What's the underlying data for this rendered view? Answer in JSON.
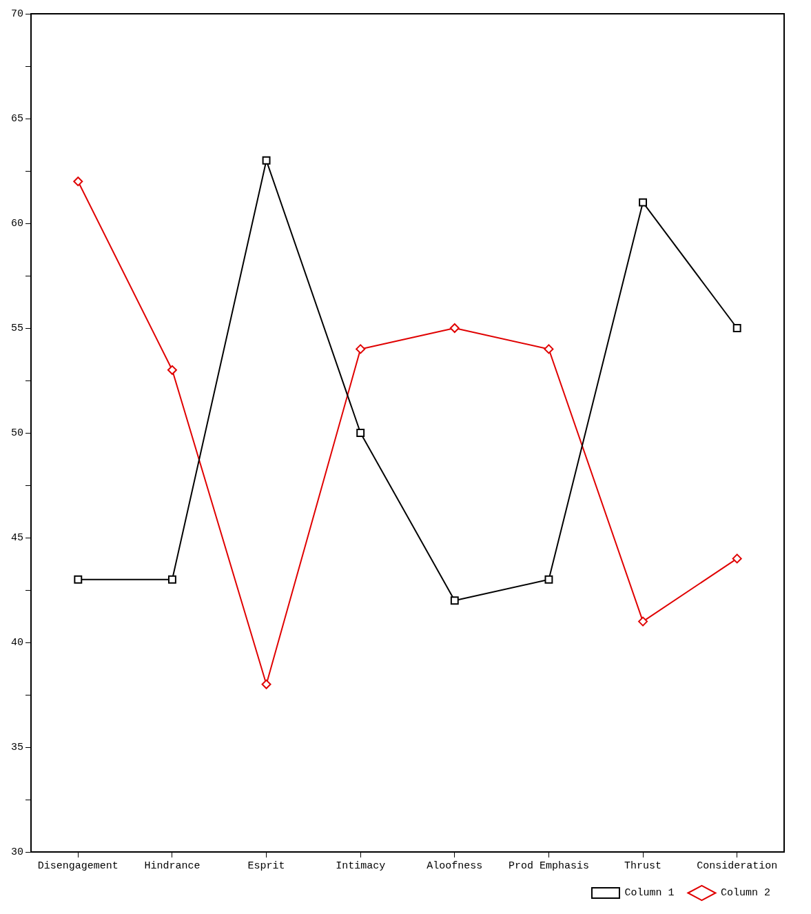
{
  "chart_data": {
    "type": "line",
    "categories": [
      "Disengagement",
      "Hindrance",
      "Esprit",
      "Intimacy",
      "Aloofness",
      "Prod Emphasis",
      "Thrust",
      "Consideration"
    ],
    "series": [
      {
        "name": "Column 1",
        "color": "#000000",
        "marker": "square",
        "values": [
          43,
          43,
          63,
          50,
          42,
          43,
          61,
          55
        ]
      },
      {
        "name": "Column 2",
        "color": "#e00000",
        "marker": "diamond",
        "values": [
          62,
          53,
          38,
          54,
          55,
          54,
          41,
          44
        ]
      }
    ],
    "ylim": [
      30,
      70
    ],
    "yticks": [
      30,
      {
        "value": 32.5,
        "label": null
      },
      35,
      {
        "value": 37.5,
        "label": null
      },
      40,
      {
        "value": 42.5,
        "label": null
      },
      45,
      {
        "value": 47.5,
        "label": null
      },
      50,
      {
        "value": 52.5,
        "label": null
      },
      55,
      {
        "value": 57.5,
        "label": null
      },
      60,
      {
        "value": 62.5,
        "label": null
      },
      65,
      {
        "value": 67.5,
        "label": null
      },
      70
    ],
    "grid": false,
    "legend": "bottom right",
    "line_style": "solid"
  }
}
